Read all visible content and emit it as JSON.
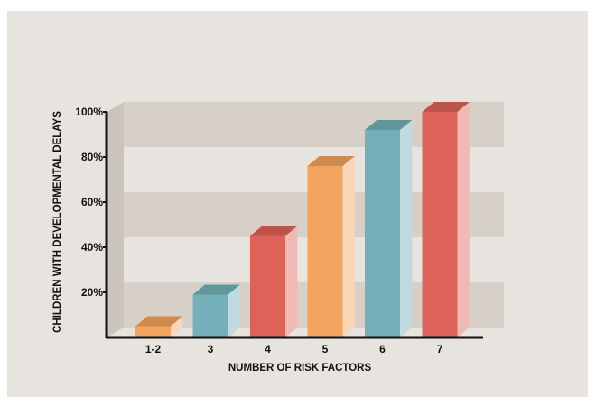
{
  "chart_data": {
    "type": "bar",
    "categories": [
      "1-2",
      "3",
      "4",
      "5",
      "6",
      "7"
    ],
    "values": [
      5,
      19,
      45,
      76,
      92,
      100
    ],
    "xlabel": "NUMBER OF RISK FACTORS",
    "ylabel": "CHILDREN WITH DEVELOPMENTAL DELAYS",
    "ylim": [
      0,
      100
    ],
    "yticks": [
      20,
      40,
      60,
      80,
      100
    ],
    "ytick_labels": [
      "20%",
      "40%",
      "60%",
      "80%",
      "100%"
    ],
    "grid": "horizontal bands",
    "legend": "none"
  },
  "colors": {
    "background": "#e7e3de",
    "band": "#d6d0c8",
    "wall": "#cbc4bb",
    "axis": "#111111",
    "orange": "#f2a35e",
    "teal": "#73b0b9",
    "red": "#dd6358",
    "bar_colors": [
      "orange",
      "teal",
      "red",
      "orange",
      "teal",
      "red"
    ]
  }
}
